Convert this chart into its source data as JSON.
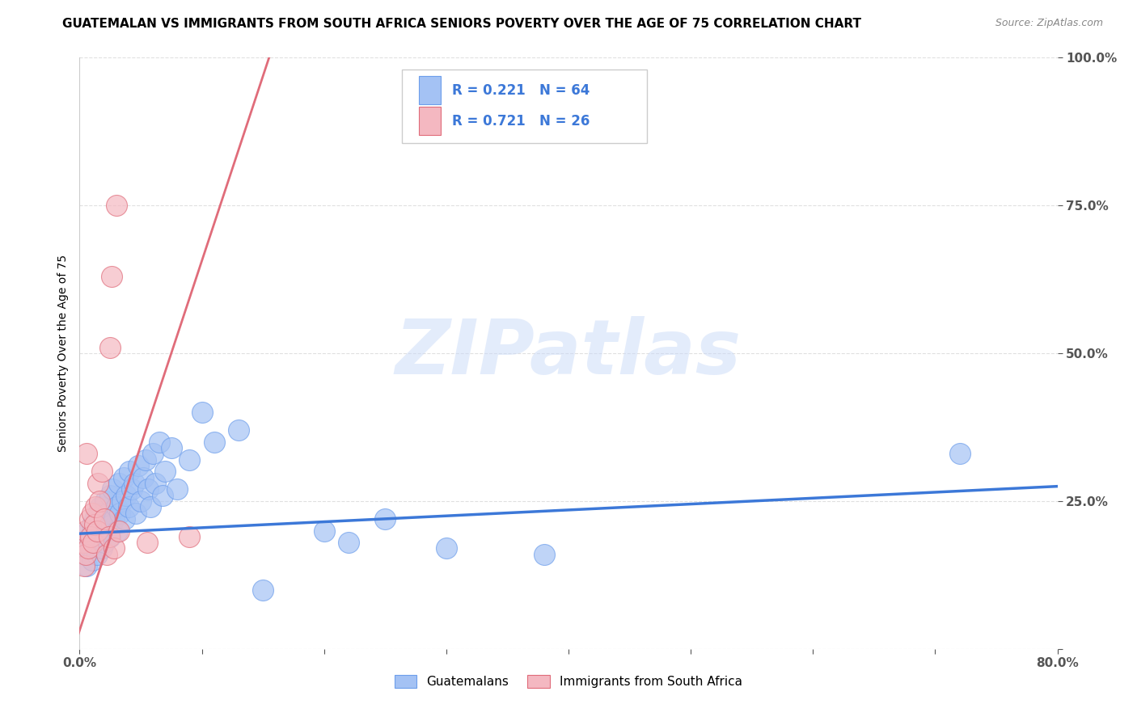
{
  "title": "GUATEMALAN VS IMMIGRANTS FROM SOUTH AFRICA SENIORS POVERTY OVER THE AGE OF 75 CORRELATION CHART",
  "source": "Source: ZipAtlas.com",
  "ylabel": "Seniors Poverty Over the Age of 75",
  "xlim": [
    0.0,
    0.8
  ],
  "ylim": [
    0.0,
    1.0
  ],
  "xticks": [
    0.0,
    0.1,
    0.2,
    0.3,
    0.4,
    0.5,
    0.6,
    0.7,
    0.8
  ],
  "xticklabels": [
    "0.0%",
    "",
    "",
    "",
    "",
    "",
    "",
    "",
    "80.0%"
  ],
  "yticks": [
    0.0,
    0.25,
    0.5,
    0.75,
    1.0
  ],
  "yticklabels": [
    "",
    "25.0%",
    "50.0%",
    "75.0%",
    "100.0%"
  ],
  "blue_color": "#a4c2f4",
  "pink_color": "#f4b8c1",
  "blue_edge_color": "#6d9eeb",
  "pink_edge_color": "#e06c7a",
  "blue_line_color": "#3c78d8",
  "pink_line_color": "#e06c7a",
  "blue_R": 0.221,
  "blue_N": 64,
  "pink_R": 0.721,
  "pink_N": 26,
  "legend1": "Guatemalans",
  "legend2": "Immigrants from South Africa",
  "watermark": "ZIPatlas",
  "watermark_color": "#c9daf8",
  "background_color": "#ffffff",
  "grid_color": "#dddddd",
  "title_fontsize": 11,
  "axis_label_fontsize": 10,
  "tick_fontsize": 11,
  "legend_fontsize": 11,
  "blue_line_x0": 0.0,
  "blue_line_y0": 0.195,
  "blue_line_x1": 0.8,
  "blue_line_y1": 0.275,
  "pink_line_x0": -0.005,
  "pink_line_y0": 0.0,
  "pink_line_x1": 0.155,
  "pink_line_y1": 1.0,
  "blue_scatter_x": [
    0.003,
    0.005,
    0.006,
    0.007,
    0.008,
    0.009,
    0.01,
    0.01,
    0.012,
    0.013,
    0.014,
    0.015,
    0.015,
    0.016,
    0.017,
    0.018,
    0.019,
    0.02,
    0.02,
    0.021,
    0.022,
    0.023,
    0.025,
    0.025,
    0.026,
    0.027,
    0.028,
    0.03,
    0.031,
    0.032,
    0.033,
    0.035,
    0.036,
    0.037,
    0.038,
    0.04,
    0.041,
    0.043,
    0.045,
    0.046,
    0.048,
    0.05,
    0.052,
    0.054,
    0.056,
    0.058,
    0.06,
    0.062,
    0.065,
    0.068,
    0.07,
    0.075,
    0.08,
    0.09,
    0.1,
    0.11,
    0.13,
    0.15,
    0.2,
    0.22,
    0.25,
    0.3,
    0.38,
    0.72
  ],
  "blue_scatter_y": [
    0.18,
    0.16,
    0.14,
    0.2,
    0.19,
    0.17,
    0.21,
    0.15,
    0.22,
    0.18,
    0.16,
    0.2,
    0.23,
    0.19,
    0.24,
    0.17,
    0.21,
    0.22,
    0.18,
    0.25,
    0.2,
    0.23,
    0.19,
    0.26,
    0.21,
    0.27,
    0.22,
    0.24,
    0.2,
    0.28,
    0.23,
    0.25,
    0.29,
    0.22,
    0.26,
    0.24,
    0.3,
    0.27,
    0.28,
    0.23,
    0.31,
    0.25,
    0.29,
    0.32,
    0.27,
    0.24,
    0.33,
    0.28,
    0.35,
    0.26,
    0.3,
    0.34,
    0.27,
    0.32,
    0.4,
    0.35,
    0.37,
    0.1,
    0.2,
    0.18,
    0.22,
    0.17,
    0.16,
    0.33
  ],
  "pink_scatter_x": [
    0.003,
    0.004,
    0.005,
    0.005,
    0.006,
    0.007,
    0.008,
    0.009,
    0.01,
    0.011,
    0.012,
    0.013,
    0.014,
    0.015,
    0.016,
    0.018,
    0.02,
    0.022,
    0.024,
    0.025,
    0.026,
    0.028,
    0.03,
    0.032,
    0.055,
    0.09
  ],
  "pink_scatter_y": [
    0.18,
    0.14,
    0.16,
    0.2,
    0.33,
    0.17,
    0.22,
    0.19,
    0.23,
    0.18,
    0.21,
    0.24,
    0.2,
    0.28,
    0.25,
    0.3,
    0.22,
    0.16,
    0.19,
    0.51,
    0.63,
    0.17,
    0.75,
    0.2,
    0.18,
    0.19
  ]
}
